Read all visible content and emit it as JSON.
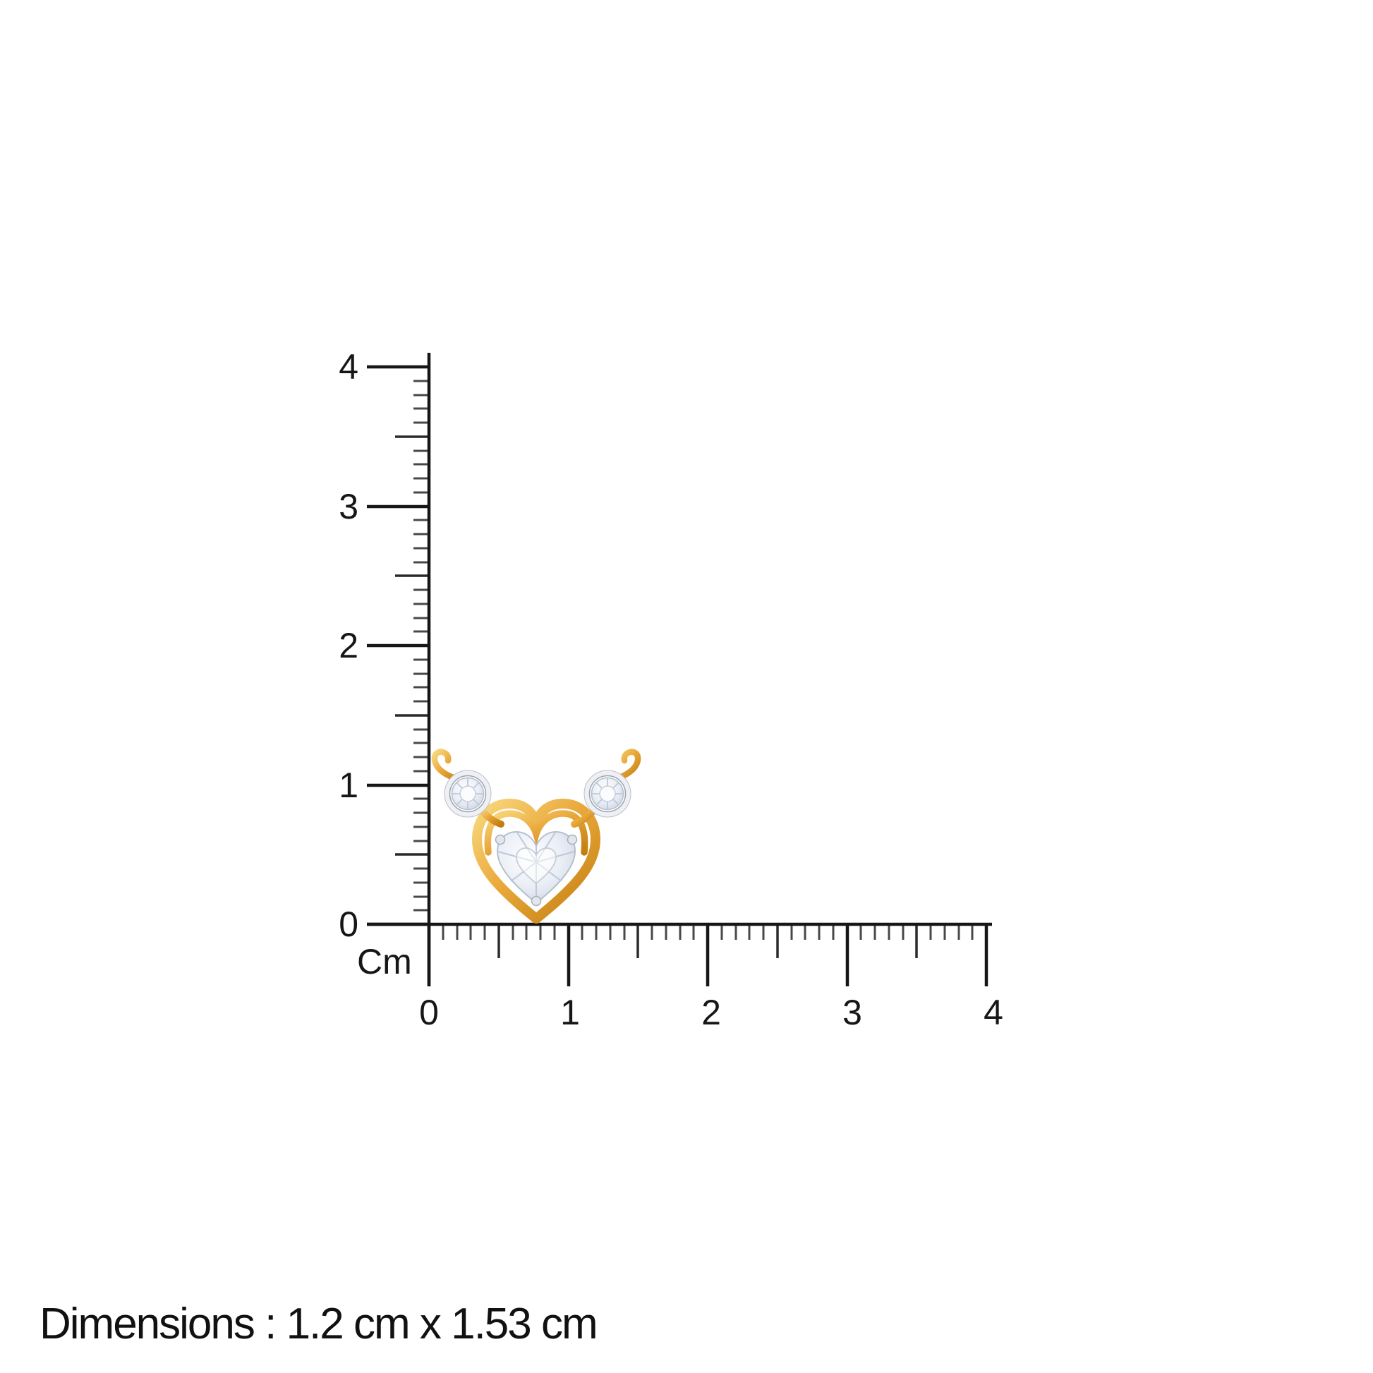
{
  "page": {
    "background": "#ffffff"
  },
  "ruler": {
    "unit_label": "Cm",
    "vertical_labels": [
      "4",
      "3",
      "2",
      "1",
      "0"
    ],
    "horizontal_labels": [
      "0",
      "1",
      "2",
      "3",
      "4"
    ]
  },
  "caption": {
    "text": "Dimensions : 1.2 cm x 1.53 cm"
  },
  "pendant": {
    "description": "gold heart pendant with heart-cut diamond and two round bezel-set diamonds with gold hooks",
    "colors": {
      "gold_light": "#f9d87e",
      "gold": "#eaa93c",
      "gold_dark": "#c27d0e",
      "silver_rim": "#eef0f4",
      "silver_edge": "#b9c0ca",
      "diamond_center": "#ffffff",
      "diamond_mid": "#eaeef6",
      "diamond_edge": "#ccd4e2",
      "facet_line": "#bfc8d8"
    }
  }
}
